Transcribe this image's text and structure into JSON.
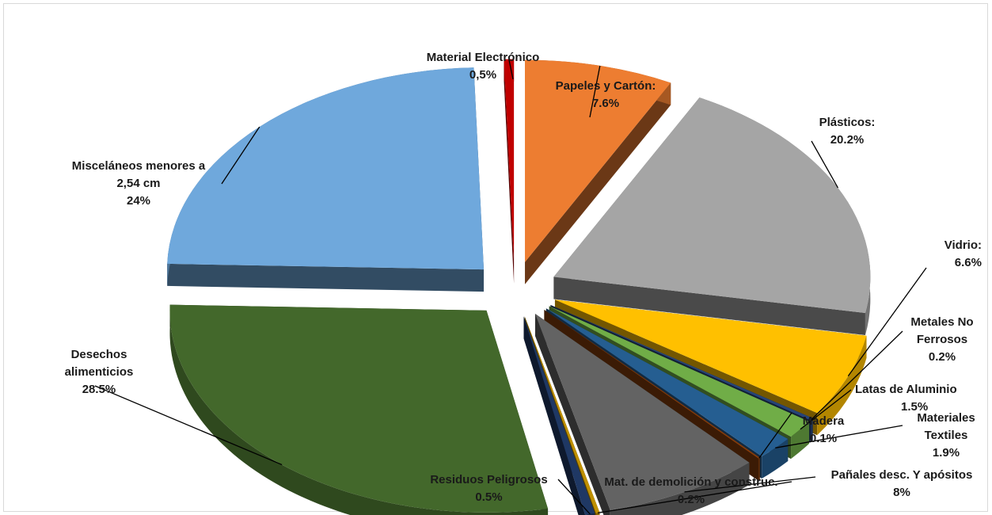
{
  "chart_data": {
    "type": "pie",
    "style": "3d-exploded",
    "title": "",
    "slices": [
      {
        "name": "Papeles y Cartón:",
        "value_label": "7.6%",
        "value": 7.6,
        "color": "#ED7D31"
      },
      {
        "name": "Plásticos:",
        "value_label": "20.2%",
        "value": 20.2,
        "color": "#A5A5A5"
      },
      {
        "name": "Vidrio:",
        "value_label": "6.6%",
        "value": 6.6,
        "color": "#FFC000"
      },
      {
        "name": "Metales No Ferrosos",
        "value_label": "0.2%",
        "value": 0.2,
        "color": "#264478"
      },
      {
        "name": "Latas de Aluminio",
        "value_label": "1.5%",
        "value": 1.5,
        "color": "#70AD47"
      },
      {
        "name": "Materiales Textiles",
        "value_label": "1.9%",
        "value": 1.9,
        "color": "#255E91"
      },
      {
        "name": "Madera",
        "value_label": "0.1%",
        "value": 0.1,
        "color": "#843C0C"
      },
      {
        "name": "Pañales desc. Y apósitos",
        "value_label": "8%",
        "value": 8,
        "color": "#636363"
      },
      {
        "name": "Mat. de demolición y construc.",
        "value_label": "0.2%",
        "value": 0.2,
        "color": "#BF9000"
      },
      {
        "name": "Residuos Peligrosos",
        "value_label": "0.5%",
        "value": 0.5,
        "color": "#1F3864"
      },
      {
        "name": "Desechos alimenticios",
        "value_label": "28.5%",
        "value": 28.5,
        "color": "#43682B"
      },
      {
        "name": "Misceláneos menores a 2,54 cm",
        "value_label": "24%",
        "value": 24,
        "color": "#6FA8DC"
      },
      {
        "name": "Material Electrónico",
        "value_label": "0,5%",
        "value": 0.5,
        "color": "#C00000"
      }
    ],
    "legend": "none",
    "data_labels": "outside-with-leaders"
  }
}
